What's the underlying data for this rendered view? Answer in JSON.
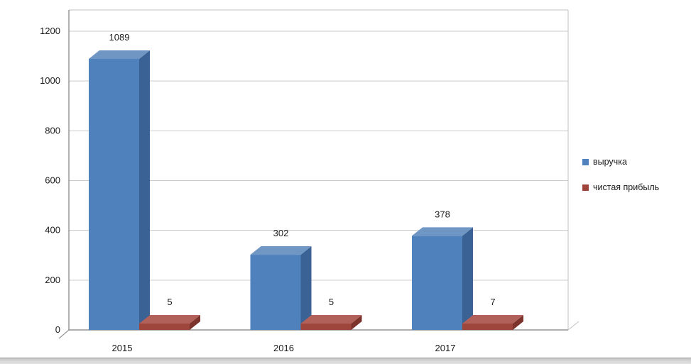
{
  "chart_data": {
    "type": "bar",
    "style": "3d-clustered-column",
    "title": "",
    "xlabel": "",
    "ylabel": "",
    "categories": [
      "2015",
      "2016",
      "2017"
    ],
    "series": [
      {
        "key": "revenue",
        "name": "выручка",
        "values": [
          1089,
          302,
          378
        ],
        "color_front": "#4f81bd",
        "color_top": "#7096c4",
        "color_side": "#3a6294"
      },
      {
        "key": "net-profit",
        "name": "чистая прибыль",
        "values": [
          5,
          5,
          7
        ],
        "color_front": "#9e463c",
        "color_top": "#b2605a",
        "color_side": "#7c332c"
      }
    ],
    "ylim": [
      0,
      1200
    ],
    "yticks": [
      0,
      200,
      400,
      600,
      800,
      1000,
      1200
    ],
    "grid": true,
    "legend_position": "right",
    "data_labels": true
  },
  "axis": {
    "y_tick_labels": [
      "0",
      "200",
      "400",
      "600",
      "800",
      "1000",
      "1200"
    ],
    "x_tick_labels": [
      "2015",
      "2016",
      "2017"
    ]
  },
  "colors": {
    "background": "#ffffff",
    "gridline": "#c9c9c9",
    "axis_line": "#7f7f7f",
    "wall_line": "#c2c2c2",
    "label_text": "#1a1a1a"
  }
}
